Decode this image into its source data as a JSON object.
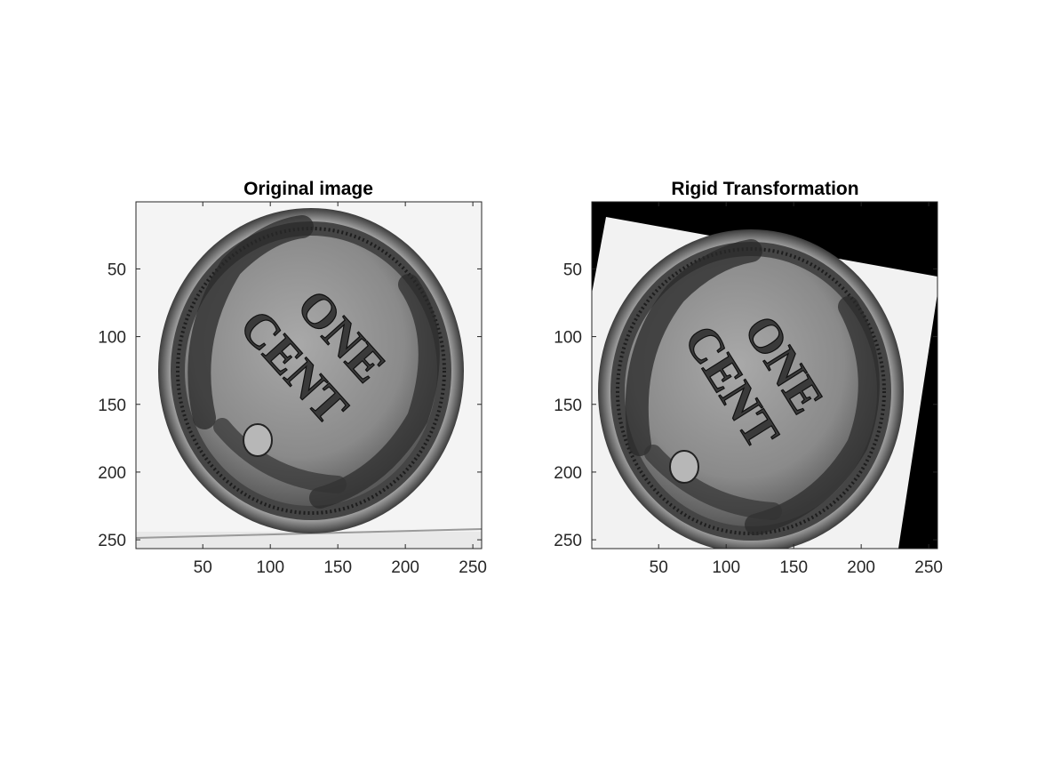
{
  "figure": {
    "panels": [
      {
        "id": "left",
        "title": "Original image",
        "x_ticks": [
          "50",
          "100",
          "150",
          "200",
          "250"
        ],
        "y_ticks": [
          "50",
          "100",
          "150",
          "200",
          "250"
        ],
        "coin_text": [
          "ONE",
          "CENT"
        ]
      },
      {
        "id": "right",
        "title": "Rigid Transformation",
        "x_ticks": [
          "50",
          "100",
          "150",
          "200",
          "250"
        ],
        "y_ticks": [
          "50",
          "100",
          "150",
          "200",
          "250"
        ],
        "coin_text": [
          "ONE",
          "CENT"
        ]
      }
    ],
    "axis_range": [
      0.5,
      256.5
    ],
    "tick_values": [
      50,
      100,
      150,
      200,
      250
    ],
    "colors": {
      "background": "#ffffff",
      "axis": "#262626",
      "fill_black": "#000000"
    }
  }
}
